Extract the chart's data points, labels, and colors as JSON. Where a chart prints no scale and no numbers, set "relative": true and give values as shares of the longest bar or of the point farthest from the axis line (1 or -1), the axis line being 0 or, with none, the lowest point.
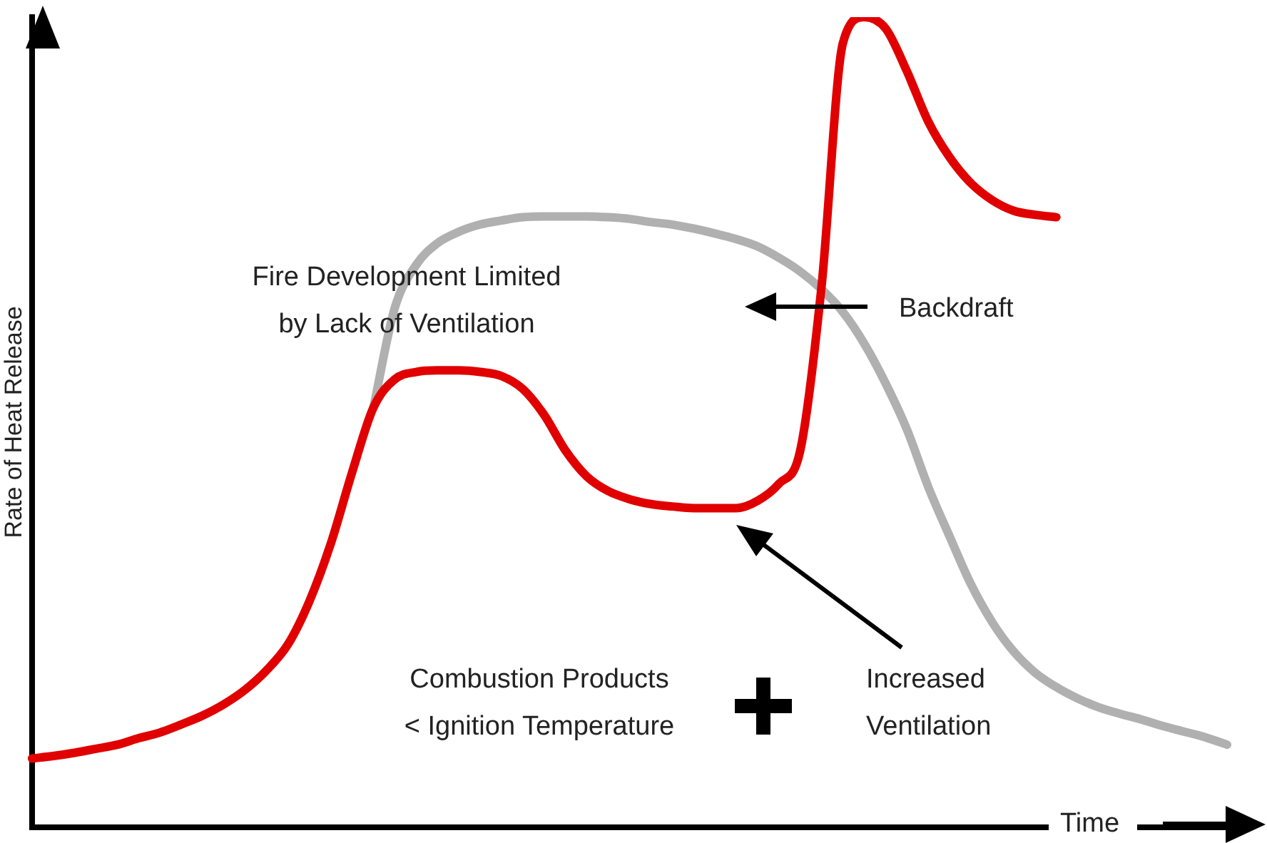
{
  "chart_data": {
    "type": "line",
    "relative": true,
    "ylabel": "Rate of Heat Release",
    "xlabel": "Time",
    "categories": [
      null,
      null,
      null,
      null,
      null,
      null,
      null,
      null,
      null,
      null,
      null,
      null,
      null,
      null,
      null,
      null,
      null,
      null,
      null,
      null,
      null,
      null,
      null,
      null,
      null,
      null,
      null,
      null,
      null,
      null,
      null,
      null,
      null,
      null,
      null,
      null,
      null,
      null,
      null,
      null,
      null,
      null,
      null,
      null,
      null,
      null,
      null,
      null,
      null,
      null,
      null,
      null,
      null,
      null,
      null,
      null,
      null
    ],
    "series": [
      {
        "color": "#e00000",
        "values": [
          0.085,
          0.088,
          0.092,
          0.097,
          0.102,
          0.11,
          0.117,
          0.127,
          0.138,
          0.152,
          0.17,
          0.194,
          0.226,
          0.279,
          0.35,
          0.438,
          0.518,
          0.553,
          0.562,
          0.564,
          0.564,
          0.562,
          0.557,
          0.541,
          0.509,
          0.465,
          0.433,
          0.415,
          0.405,
          0.399,
          0.396,
          0.394,
          0.394,
          0.394,
          0.403,
          0.424,
          0.465,
          0.668,
          0.968,
          1,
          0.986,
          0.933,
          0.871,
          0.827,
          0.795,
          0.774,
          0.761,
          0.756,
          0.753,
          null,
          null,
          null,
          null,
          null,
          null,
          null,
          null
        ]
      },
      {
        "color": "#b0b0b0",
        "values": [
          null,
          null,
          null,
          null,
          null,
          null,
          null,
          null,
          null,
          null,
          null,
          null,
          null,
          null,
          null,
          null,
          0.518,
          0.641,
          0.694,
          0.721,
          0.735,
          0.744,
          0.749,
          0.753,
          0.754,
          0.754,
          0.754,
          0.753,
          0.751,
          0.747,
          0.744,
          0.739,
          0.733,
          0.726,
          0.717,
          0.703,
          0.686,
          0.664,
          0.636,
          0.597,
          0.548,
          0.491,
          0.42,
          0.359,
          0.3,
          0.253,
          0.217,
          0.191,
          0.173,
          0.159,
          0.148,
          0.14,
          0.133,
          0.125,
          0.118,
          0.111,
          0.102
        ]
      }
    ],
    "annotations": [
      "Fire Development Limited\nby Lack of Ventilation",
      "Backdraft",
      "Combustion Products\n< Ignition Temperature",
      "Increased\nVentilation"
    ],
    "legend": false,
    "grid": false,
    "marker": "none",
    "line_style": "solid"
  }
}
